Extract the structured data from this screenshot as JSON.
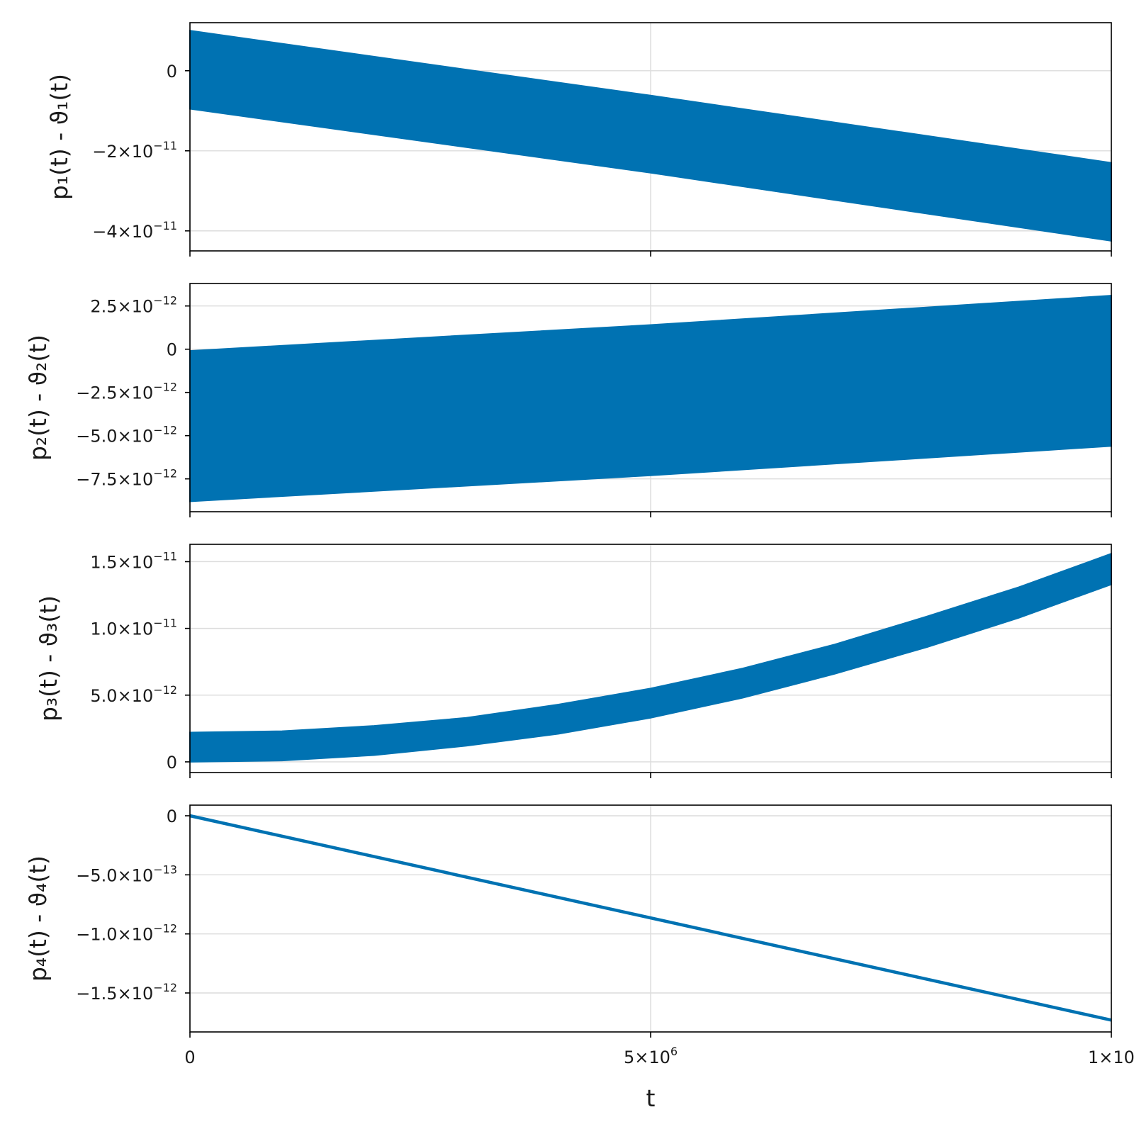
{
  "colors": {
    "series": "#0072b2",
    "grid": "#dcdcdc",
    "axis": "#000000"
  },
  "x_axis": {
    "label": "t",
    "ticks": [
      {
        "value": 0,
        "label": "0"
      },
      {
        "value": 5000000,
        "label": "5×10",
        "exp": "6"
      },
      {
        "value": 10000000,
        "label": "1×10"
      }
    ]
  },
  "chart_data": [
    {
      "type": "area",
      "ylabel": "p₁(t) - ϑ₁(t)",
      "xlim": [
        0,
        10000000
      ],
      "ylim": [
        -4.5e-11,
        1.2e-11
      ],
      "grid": true,
      "y_ticks": [
        {
          "value": 0,
          "label": "0"
        },
        {
          "value": -2e-11,
          "label": "−2×10",
          "exp": "−11"
        },
        {
          "value": -4e-11,
          "label": "−4×10",
          "exp": "−11"
        }
      ],
      "band": {
        "x": [
          0,
          5000000,
          10000000
        ],
        "upper": [
          1e-11,
          -6.2e-12,
          -2.3e-11
        ],
        "lower": [
          -9.5e-12,
          -2.55e-11,
          -4.25e-11
        ]
      }
    },
    {
      "type": "area",
      "ylabel": "p₂(t) - ϑ₂(t)",
      "xlim": [
        0,
        10000000
      ],
      "ylim": [
        -9.4e-12,
        3.8e-12
      ],
      "grid": true,
      "y_ticks": [
        {
          "value": 2.5e-12,
          "label": "2.5×10",
          "exp": "−12"
        },
        {
          "value": 0,
          "label": "0"
        },
        {
          "value": -2.5e-12,
          "label": "−2.5×10",
          "exp": "−12"
        },
        {
          "value": -5e-12,
          "label": "−5.0×10",
          "exp": "−12"
        },
        {
          "value": -7.5e-12,
          "label": "−7.5×10",
          "exp": "−12"
        }
      ],
      "band": {
        "x": [
          0,
          5000000,
          10000000
        ],
        "upper": [
          -1e-13,
          1.4e-12,
          3.1e-12
        ],
        "lower": [
          -8.8e-12,
          -7.3e-12,
          -5.6e-12
        ]
      }
    },
    {
      "type": "area",
      "ylabel": "p₃(t) - ϑ₃(t)",
      "xlim": [
        0,
        10000000
      ],
      "ylim": [
        -8e-13,
        1.63e-11
      ],
      "grid": true,
      "y_ticks": [
        {
          "value": 1.5e-11,
          "label": "1.5×10",
          "exp": "−11"
        },
        {
          "value": 1e-11,
          "label": "1.0×10",
          "exp": "−11"
        },
        {
          "value": 5e-12,
          "label": "5.0×10",
          "exp": "−12"
        },
        {
          "value": 0,
          "label": "0"
        }
      ],
      "band": {
        "x": [
          0,
          1000000,
          2000000,
          3000000,
          4000000,
          5000000,
          6000000,
          7000000,
          8000000,
          9000000,
          10000000
        ],
        "upper": [
          2.2e-12,
          2.3e-12,
          2.7e-12,
          3.3e-12,
          4.3e-12,
          5.5e-12,
          7e-12,
          8.8e-12,
          1.09e-11,
          1.31e-11,
          1.56e-11
        ],
        "lower": [
          0.0,
          1e-13,
          5e-13,
          1.2e-12,
          2.1e-12,
          3.3e-12,
          4.8e-12,
          6.6e-12,
          8.6e-12,
          1.08e-11,
          1.33e-11
        ]
      }
    },
    {
      "type": "line",
      "ylabel": "p₄(t) - ϑ₄(t)",
      "xlim": [
        0,
        10000000
      ],
      "ylim": [
        -1.83e-12,
        9e-14
      ],
      "grid": true,
      "y_ticks": [
        {
          "value": 0,
          "label": "0"
        },
        {
          "value": -5e-13,
          "label": "−5.0×10",
          "exp": "−13"
        },
        {
          "value": -1e-12,
          "label": "−1.0×10",
          "exp": "−12"
        },
        {
          "value": -1.5e-12,
          "label": "−1.5×10",
          "exp": "−12"
        }
      ],
      "x": [
        0,
        10000000
      ],
      "y": [
        0,
        -1.73e-12
      ]
    }
  ]
}
